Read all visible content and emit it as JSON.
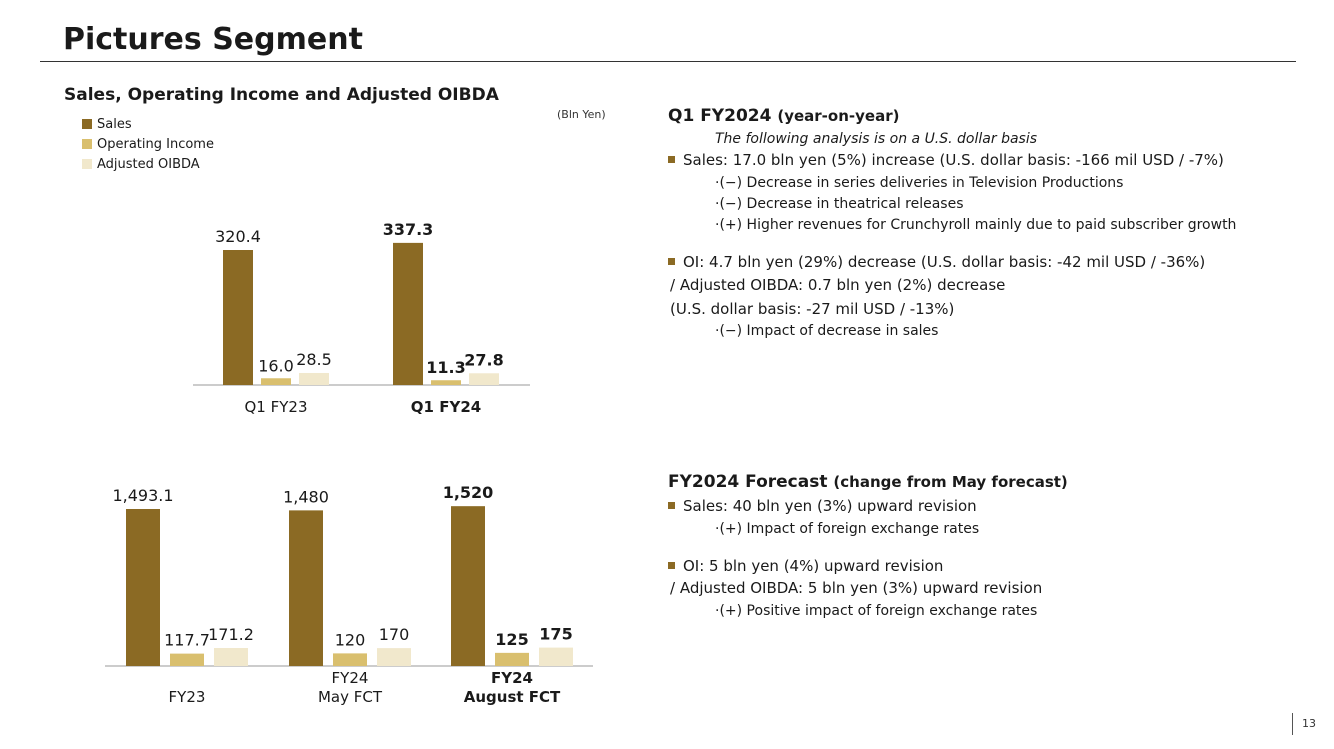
{
  "page_title": "Pictures Segment",
  "section_title": "Sales, Operating Income and Adjusted OIBDA",
  "unit_label": "(Bln Yen)",
  "page_number": "13",
  "colors": {
    "sales": "#8b6a24",
    "oi": "#d9bf6e",
    "oibda": "#f1e8cc",
    "bullet": "#8b6a24"
  },
  "legend": [
    "Sales",
    "Operating Income",
    "Adjusted OIBDA"
  ],
  "chart_data": [
    {
      "type": "bar",
      "title": "Q1",
      "categories": [
        "Q1 FY23",
        "Q1 FY24"
      ],
      "bold_categories": [
        false,
        true
      ],
      "series": [
        {
          "name": "Sales",
          "values": [
            320.4,
            337.3
          ],
          "labels": [
            "320.4",
            "337.3"
          ]
        },
        {
          "name": "Operating Income",
          "values": [
            16.0,
            11.3
          ],
          "labels": [
            "16.0",
            "11.3"
          ]
        },
        {
          "name": "Adjusted OIBDA",
          "values": [
            28.5,
            27.8
          ],
          "labels": [
            "28.5",
            "27.8"
          ]
        }
      ],
      "ylim": [
        0,
        360
      ]
    },
    {
      "type": "bar",
      "title": "FY",
      "categories": [
        "FY23",
        "FY24 May FCT",
        "FY24 August FCT"
      ],
      "category_lines": [
        [
          "FY23"
        ],
        [
          "FY24",
          "May FCT"
        ],
        [
          "FY24",
          "August FCT"
        ]
      ],
      "bold_categories": [
        false,
        false,
        true
      ],
      "series": [
        {
          "name": "Sales",
          "values": [
            1493.1,
            1480,
            1520
          ],
          "labels": [
            "1,493.1",
            "1,480",
            "1,520"
          ]
        },
        {
          "name": "Operating Income",
          "values": [
            117.7,
            120,
            125
          ],
          "labels": [
            "117.7",
            "120",
            "125"
          ]
        },
        {
          "name": "Adjusted OIBDA",
          "values": [
            171.2,
            170,
            175
          ],
          "labels": [
            "171.2",
            "170",
            "175"
          ]
        }
      ],
      "ylim": [
        0,
        1600
      ]
    }
  ],
  "q1": {
    "heading": "Q1 FY2024",
    "heading_sub": "(year-on-year)",
    "note": "The following analysis is on a U.S. dollar basis",
    "sales_line": "Sales: 17.0 bln yen (5%) increase (U.S. dollar basis: -166 mil USD / -7%)",
    "sales_items": [
      "·(−) Decrease in series deliveries in Television Productions",
      "·(−) Decrease in theatrical releases",
      "·(+) Higher revenues for Crunchyroll mainly due to paid subscriber growth"
    ],
    "oi_line": "OI: 4.7 bln yen (29%) decrease (U.S. dollar basis: -42 mil USD / -36%)",
    "oi_line2": "/ Adjusted OIBDA: 0.7 bln yen (2%) decrease",
    "oi_line3": "(U.S. dollar basis: -27 mil USD / -13%)",
    "oi_items": [
      "·(−) Impact of decrease in sales"
    ]
  },
  "fy": {
    "heading": "FY2024 Forecast",
    "heading_sub": "(change from May forecast)",
    "sales_line": "Sales: 40 bln yen (3%) upward revision",
    "sales_items": [
      "·(+) Impact of foreign exchange rates"
    ],
    "oi_line": "OI: 5 bln yen (4%) upward revision",
    "oi_line2": "/ Adjusted OIBDA: 5 bln yen (3%) upward revision",
    "oi_items": [
      "·(+) Positive impact of foreign exchange rates"
    ]
  }
}
